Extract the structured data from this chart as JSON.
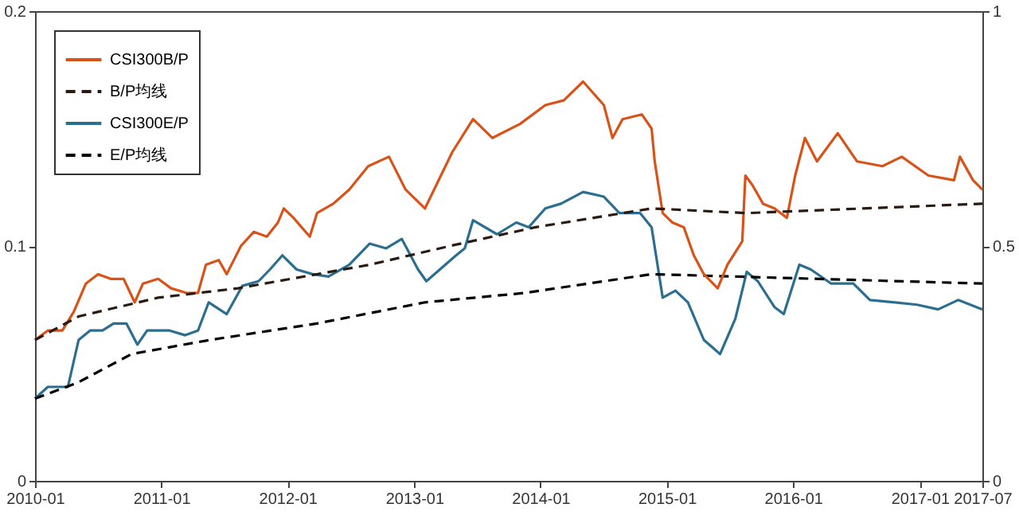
{
  "chart_data": {
    "type": "line",
    "legend": "top left",
    "grid": false,
    "xlim": [
      "2010-01",
      "2017-07"
    ],
    "xticks": [
      "2010-01",
      "2011-01",
      "2012-01",
      "2013-01",
      "2014-01",
      "2015-01",
      "2016-01",
      "2017-01",
      "2017-07"
    ],
    "ylim": [
      0,
      0.2
    ],
    "yticks": [
      0,
      0.1,
      0.2
    ],
    "y2lim": [
      0,
      1
    ],
    "y2ticks": [
      0,
      0.5,
      1
    ],
    "series": [
      {
        "name": "CSI300B/P",
        "color": "#d95319",
        "axis": "y2",
        "line_style": "solid",
        "x": [
          "2010-01-01",
          "2010-02-07",
          "2010-03-21",
          "2010-04-23",
          "2010-05-28",
          "2010-07-02",
          "2010-08-08",
          "2010-09-14",
          "2010-10-16",
          "2010-11-09",
          "2010-12-23",
          "2011-01-29",
          "2011-03-15",
          "2011-04-17",
          "2011-05-10",
          "2011-06-16",
          "2011-07-09",
          "2011-08-19",
          "2011-09-25",
          "2011-11-02",
          "2011-12-04",
          "2011-12-21",
          "2012-01-18",
          "2012-03-05",
          "2012-03-26",
          "2012-05-12",
          "2012-06-27",
          "2012-08-21",
          "2012-10-20",
          "2012-12-07",
          "2013-02-01",
          "2013-04-21",
          "2013-06-20",
          "2013-08-15",
          "2013-11-03",
          "2014-01-15",
          "2014-03-09",
          "2014-05-04",
          "2014-07-03",
          "2014-07-28",
          "2014-08-26",
          "2014-10-21",
          "2014-11-18",
          "2014-11-27",
          "2014-12-20",
          "2015-01-17",
          "2015-02-19",
          "2015-03-20",
          "2015-04-18",
          "2015-05-28",
          "2015-06-25",
          "2015-08-07",
          "2015-08-16",
          "2015-09-05",
          "2015-10-06",
          "2015-11-08",
          "2015-12-14",
          "2016-01-07",
          "2016-02-04",
          "2016-03-10",
          "2016-05-09",
          "2016-07-04",
          "2016-09-15",
          "2016-11-10",
          "2017-01-26",
          "2017-04-10",
          "2017-04-27",
          "2017-06-04",
          "2017-07-01"
        ],
        "values": [
          0.3,
          0.32,
          0.32,
          0.36,
          0.42,
          0.44,
          0.43,
          0.43,
          0.38,
          0.42,
          0.43,
          0.41,
          0.4,
          0.4,
          0.46,
          0.47,
          0.44,
          0.5,
          0.53,
          0.52,
          0.55,
          0.58,
          0.56,
          0.52,
          0.57,
          0.59,
          0.62,
          0.67,
          0.69,
          0.62,
          0.58,
          0.7,
          0.77,
          0.73,
          0.76,
          0.8,
          0.81,
          0.85,
          0.8,
          0.73,
          0.77,
          0.78,
          0.75,
          0.68,
          0.57,
          0.55,
          0.54,
          0.48,
          0.44,
          0.41,
          0.46,
          0.51,
          0.65,
          0.63,
          0.59,
          0.58,
          0.56,
          0.65,
          0.73,
          0.68,
          0.74,
          0.68,
          0.67,
          0.69,
          0.65,
          0.64,
          0.69,
          0.64,
          0.62
        ]
      },
      {
        "name": "B/P均线",
        "color": "#2a1a10",
        "axis": "y2",
        "line_style": "dashed",
        "x": [
          "2010-01-01",
          "2010-05-07",
          "2010-12-23",
          "2011-08-11",
          "2012-08-25",
          "2013-04-14",
          "2013-12-18",
          "2014-11-18",
          "2015-08-20",
          "2017-07-01"
        ],
        "values": [
          0.3,
          0.35,
          0.39,
          0.41,
          0.46,
          0.5,
          0.54,
          0.58,
          0.57,
          0.59
        ]
      },
      {
        "name": "CSI300E/P",
        "color": "#2b6e8f",
        "axis": "y",
        "line_style": "solid",
        "x": [
          "2010-01-01",
          "2010-02-07",
          "2010-04-06",
          "2010-05-07",
          "2010-06-09",
          "2010-07-15",
          "2010-08-16",
          "2010-09-22",
          "2010-10-24",
          "2010-11-21",
          "2011-01-25",
          "2011-03-11",
          "2011-04-17",
          "2011-05-18",
          "2011-07-09",
          "2011-08-23",
          "2011-10-09",
          "2011-11-11",
          "2011-12-17",
          "2012-01-27",
          "2012-03-13",
          "2012-04-28",
          "2012-06-27",
          "2012-08-25",
          "2012-10-12",
          "2012-11-26",
          "2013-01-12",
          "2013-02-05",
          "2013-05-02",
          "2013-05-27",
          "2013-06-20",
          "2013-08-28",
          "2013-10-23",
          "2013-11-28",
          "2014-01-15",
          "2014-03-01",
          "2014-05-04",
          "2014-07-03",
          "2014-08-17",
          "2014-10-16",
          "2014-11-18",
          "2014-12-20",
          "2015-01-26",
          "2015-03-03",
          "2015-04-18",
          "2015-06-04",
          "2015-07-18",
          "2015-08-20",
          "2015-09-21",
          "2015-11-08",
          "2015-12-05",
          "2016-01-19",
          "2016-02-21",
          "2016-04-20",
          "2016-06-23",
          "2016-08-10",
          "2016-10-21",
          "2016-12-24",
          "2017-02-23",
          "2017-04-22",
          "2017-07-01"
        ],
        "values": [
          0.035,
          0.04,
          0.04,
          0.06,
          0.064,
          0.064,
          0.067,
          0.067,
          0.058,
          0.064,
          0.064,
          0.062,
          0.064,
          0.076,
          0.071,
          0.083,
          0.085,
          0.09,
          0.096,
          0.09,
          0.088,
          0.087,
          0.092,
          0.101,
          0.099,
          0.103,
          0.09,
          0.085,
          0.096,
          0.099,
          0.111,
          0.105,
          0.11,
          0.108,
          0.116,
          0.118,
          0.123,
          0.121,
          0.114,
          0.114,
          0.108,
          0.078,
          0.081,
          0.076,
          0.06,
          0.054,
          0.069,
          0.089,
          0.085,
          0.074,
          0.071,
          0.092,
          0.09,
          0.084,
          0.084,
          0.077,
          0.076,
          0.075,
          0.073,
          0.077,
          0.073
        ]
      },
      {
        "name": "E/P均线",
        "color": "#000000",
        "axis": "y",
        "line_style": "dashed",
        "x": [
          "2010-01-01",
          "2010-05-07",
          "2010-10-07",
          "2011-05-22",
          "2012-03-26",
          "2013-02-01",
          "2013-11-16",
          "2014-11-18",
          "2017-07-01"
        ],
        "values": [
          0.035,
          0.042,
          0.054,
          0.06,
          0.067,
          0.076,
          0.08,
          0.088,
          0.084
        ]
      }
    ]
  }
}
